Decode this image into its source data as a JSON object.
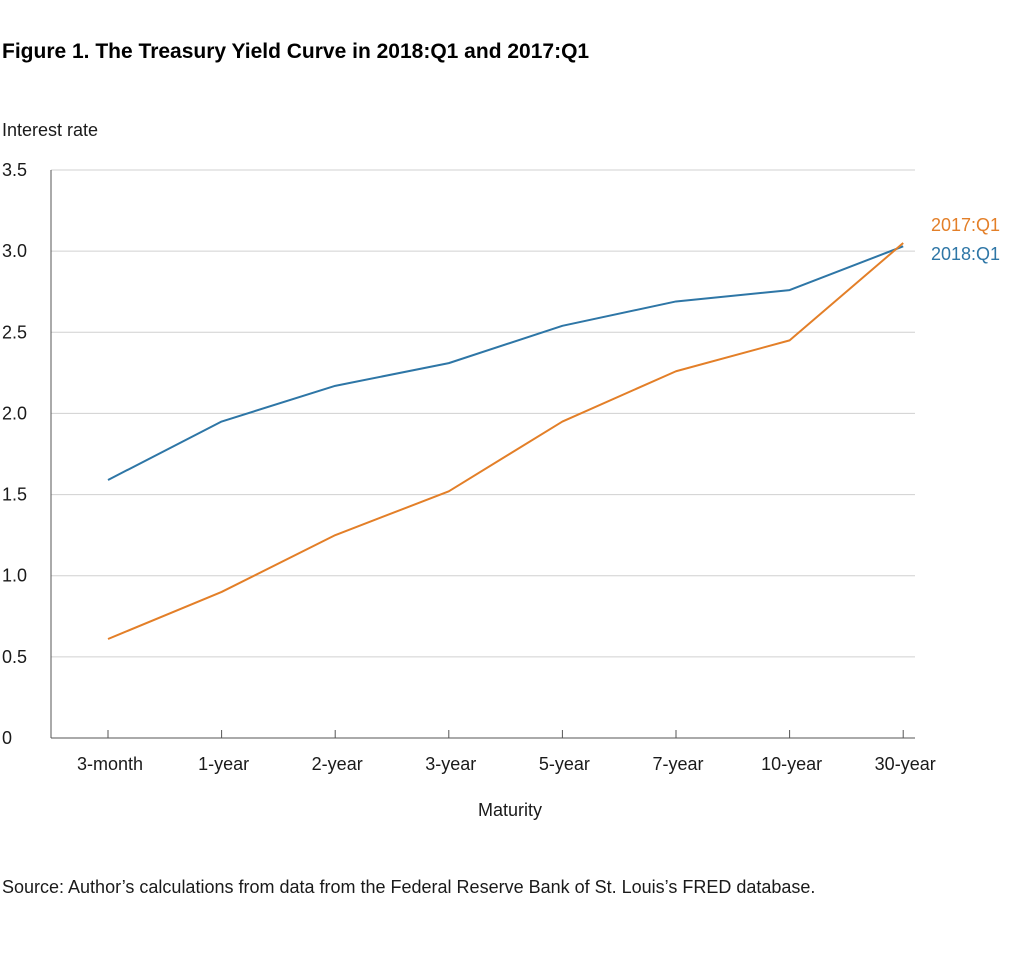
{
  "figure": {
    "title": "Figure 1. The Treasury Yield Curve in 2018:Q1 and 2017:Q1",
    "source": "Source: Author’s calculations from data from the Federal Reserve Bank of St. Louis’s FRED database."
  },
  "chart_data": {
    "type": "line",
    "title": "Figure 1. The Treasury Yield Curve in 2018:Q1 and 2017:Q1",
    "xlabel": "Maturity",
    "ylabel": "Interest rate",
    "categories": [
      "3-month",
      "1-year",
      "2-year",
      "3-year",
      "5-year",
      "7-year",
      "10-year",
      "30-year"
    ],
    "ylim": [
      0,
      3.5
    ],
    "yticks": [
      0,
      0.5,
      1.0,
      1.5,
      2.0,
      2.5,
      3.0,
      3.5
    ],
    "ytick_labels": [
      "0",
      "0.5",
      "1.0",
      "1.5",
      "2.0",
      "2.5",
      "3.0",
      "3.5"
    ],
    "grid": true,
    "series": [
      {
        "name": "2018:Q1",
        "color": "#2e76a6",
        "values": [
          1.59,
          1.95,
          2.17,
          2.31,
          2.54,
          2.69,
          2.76,
          3.03
        ]
      },
      {
        "name": "2017:Q1",
        "color": "#e37f28",
        "values": [
          0.61,
          0.9,
          1.25,
          1.52,
          1.95,
          2.26,
          2.45,
          3.05
        ]
      }
    ]
  }
}
